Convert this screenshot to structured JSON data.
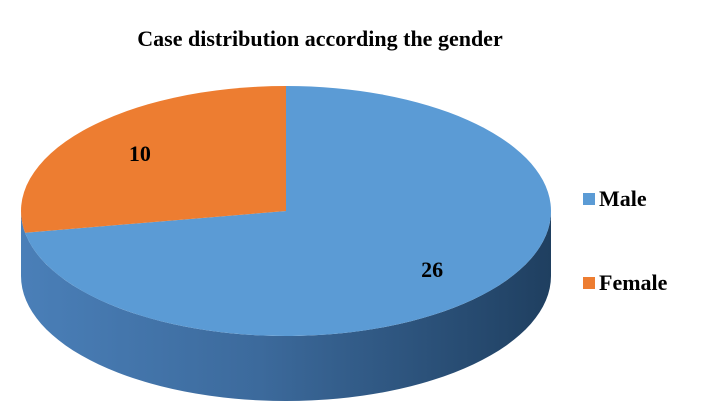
{
  "chart_data": {
    "type": "pie",
    "title": "Case distribution according the gender",
    "style": "3d",
    "slices": [
      {
        "name": "Male",
        "value": 26,
        "color": "#5b9bd5",
        "side_color": "#2f5f8f"
      },
      {
        "name": "Female",
        "value": 10,
        "color": "#ed7d31",
        "side_color": "#a85220"
      }
    ],
    "legend": "right"
  }
}
